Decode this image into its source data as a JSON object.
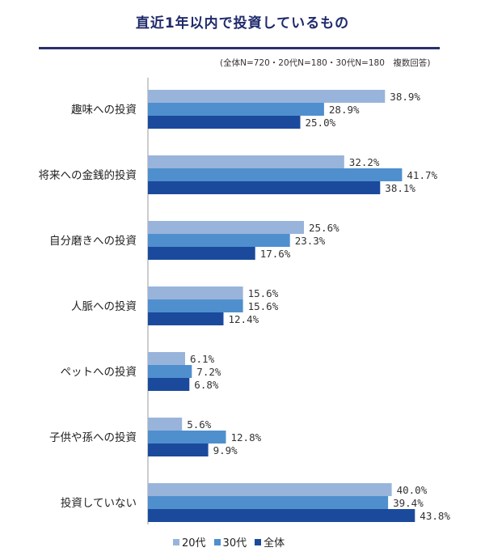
{
  "title": "直近1年以内で投資しているもの",
  "note": "(全体N=720・20代N=180・30代N=180　複数回答)",
  "chart_data": {
    "type": "bar",
    "orientation": "horizontal",
    "categories": [
      "趣味への投資",
      "将来への金銭的投資",
      "自分磨きへの投資",
      "人脈への投資",
      "ペットへの投資",
      "子供や孫への投資",
      "投資していない"
    ],
    "series": [
      {
        "name": "20代",
        "color": "#98b4db",
        "values": [
          38.9,
          32.2,
          25.6,
          15.6,
          6.1,
          5.6,
          40.0
        ]
      },
      {
        "name": "30代",
        "color": "#4f8fce",
        "values": [
          28.9,
          41.7,
          23.3,
          15.6,
          7.2,
          12.8,
          39.4
        ]
      },
      {
        "name": "全体",
        "color": "#1b4a9c",
        "values": [
          25.0,
          38.1,
          17.6,
          12.4,
          6.8,
          9.9,
          43.8
        ]
      }
    ],
    "value_suffix": "%",
    "legend_position": "bottom",
    "grid": false
  }
}
